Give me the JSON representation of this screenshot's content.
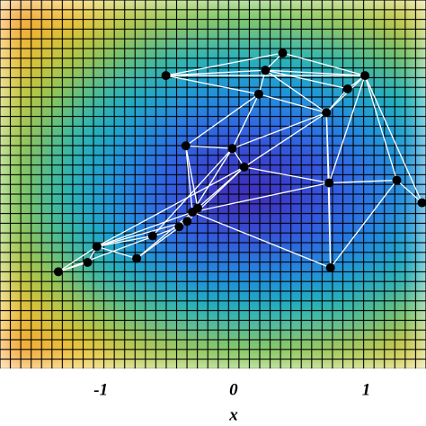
{
  "chart_data": {
    "type": "heatmap-network",
    "xlabel": "x",
    "xlim": [
      -1.76,
      1.45
    ],
    "ylim": [
      -1.39,
      1.39
    ],
    "xticks": [
      -1,
      0,
      1
    ],
    "zlim": [
      0,
      1
    ],
    "colorscale": [
      "#3f1f9e",
      "#3a3fd0",
      "#2f68e6",
      "#1f98d8",
      "#22b8b0",
      "#86c64c",
      "#ecc636",
      "#f4a02e"
    ],
    "z": [
      [
        1.0,
        0.92,
        0.85,
        0.79,
        0.75,
        0.72,
        0.7,
        0.7,
        0.72,
        0.74,
        0.77,
        0.81
      ],
      [
        0.9,
        0.81,
        0.74,
        0.67,
        0.61,
        0.57,
        0.55,
        0.56,
        0.57,
        0.6,
        0.64,
        0.69
      ],
      [
        0.81,
        0.72,
        0.63,
        0.54,
        0.48,
        0.42,
        0.4,
        0.4,
        0.42,
        0.46,
        0.51,
        0.57
      ],
      [
        0.76,
        0.65,
        0.55,
        0.46,
        0.37,
        0.3,
        0.26,
        0.27,
        0.3,
        0.35,
        0.42,
        0.48
      ],
      [
        0.72,
        0.61,
        0.5,
        0.39,
        0.29,
        0.19,
        0.12,
        0.13,
        0.19,
        0.26,
        0.34,
        0.42
      ],
      [
        0.71,
        0.6,
        0.49,
        0.38,
        0.27,
        0.16,
        0.06,
        0.07,
        0.16,
        0.24,
        0.33,
        0.41
      ],
      [
        0.74,
        0.63,
        0.53,
        0.43,
        0.33,
        0.25,
        0.21,
        0.21,
        0.25,
        0.31,
        0.38,
        0.46
      ],
      [
        0.8,
        0.71,
        0.61,
        0.53,
        0.46,
        0.4,
        0.38,
        0.38,
        0.4,
        0.44,
        0.49,
        0.55
      ],
      [
        0.9,
        0.81,
        0.73,
        0.66,
        0.61,
        0.57,
        0.55,
        0.55,
        0.57,
        0.59,
        0.63,
        0.68
      ],
      [
        1.0,
        0.93,
        0.86,
        0.8,
        0.76,
        0.73,
        0.71,
        0.71,
        0.73,
        0.75,
        0.78,
        0.82
      ]
    ],
    "nodes": {
      "color": "#000000",
      "x": [
        -0.51,
        0.37,
        0.24,
        0.99,
        0.86,
        0.19,
        0.7,
        -0.36,
        -0.01,
        0.08,
        0.72,
        1.23,
        1.42,
        -0.31,
        -0.35,
        -0.41,
        -0.61,
        -0.73,
        -1.03,
        -1.1,
        -1.32,
        0.73,
        -0.27
      ],
      "y": [
        0.82,
        0.99,
        0.86,
        0.82,
        0.72,
        0.68,
        0.54,
        0.29,
        0.27,
        0.13,
        0.01,
        0.03,
        -0.14,
        -0.21,
        -0.28,
        -0.32,
        -0.39,
        -0.56,
        -0.47,
        -0.59,
        -0.66,
        -0.63,
        -0.18
      ]
    },
    "edge_color": "#ffffff",
    "edges": [
      [
        0,
        1
      ],
      [
        0,
        2
      ],
      [
        0,
        3
      ],
      [
        0,
        5
      ],
      [
        1,
        2
      ],
      [
        1,
        3
      ],
      [
        2,
        3
      ],
      [
        2,
        4
      ],
      [
        2,
        6
      ],
      [
        3,
        4
      ],
      [
        3,
        6
      ],
      [
        3,
        10
      ],
      [
        3,
        11
      ],
      [
        4,
        6
      ],
      [
        5,
        6
      ],
      [
        5,
        2
      ],
      [
        5,
        7
      ],
      [
        5,
        8
      ],
      [
        6,
        8
      ],
      [
        6,
        10
      ],
      [
        6,
        9
      ],
      [
        6,
        21
      ],
      [
        7,
        8
      ],
      [
        7,
        22
      ],
      [
        7,
        13
      ],
      [
        8,
        9
      ],
      [
        8,
        13
      ],
      [
        8,
        16
      ],
      [
        9,
        10
      ],
      [
        9,
        22
      ],
      [
        9,
        14
      ],
      [
        10,
        11
      ],
      [
        10,
        21
      ],
      [
        10,
        13
      ],
      [
        11,
        12
      ],
      [
        11,
        21
      ],
      [
        3,
        12
      ],
      [
        13,
        21
      ],
      [
        13,
        18
      ],
      [
        13,
        17
      ],
      [
        14,
        18
      ],
      [
        15,
        20
      ],
      [
        16,
        18
      ],
      [
        17,
        18
      ],
      [
        18,
        19
      ],
      [
        19,
        20
      ],
      [
        18,
        20
      ],
      [
        22,
        15
      ],
      [
        9,
        18
      ],
      [
        14,
        17
      ]
    ]
  }
}
